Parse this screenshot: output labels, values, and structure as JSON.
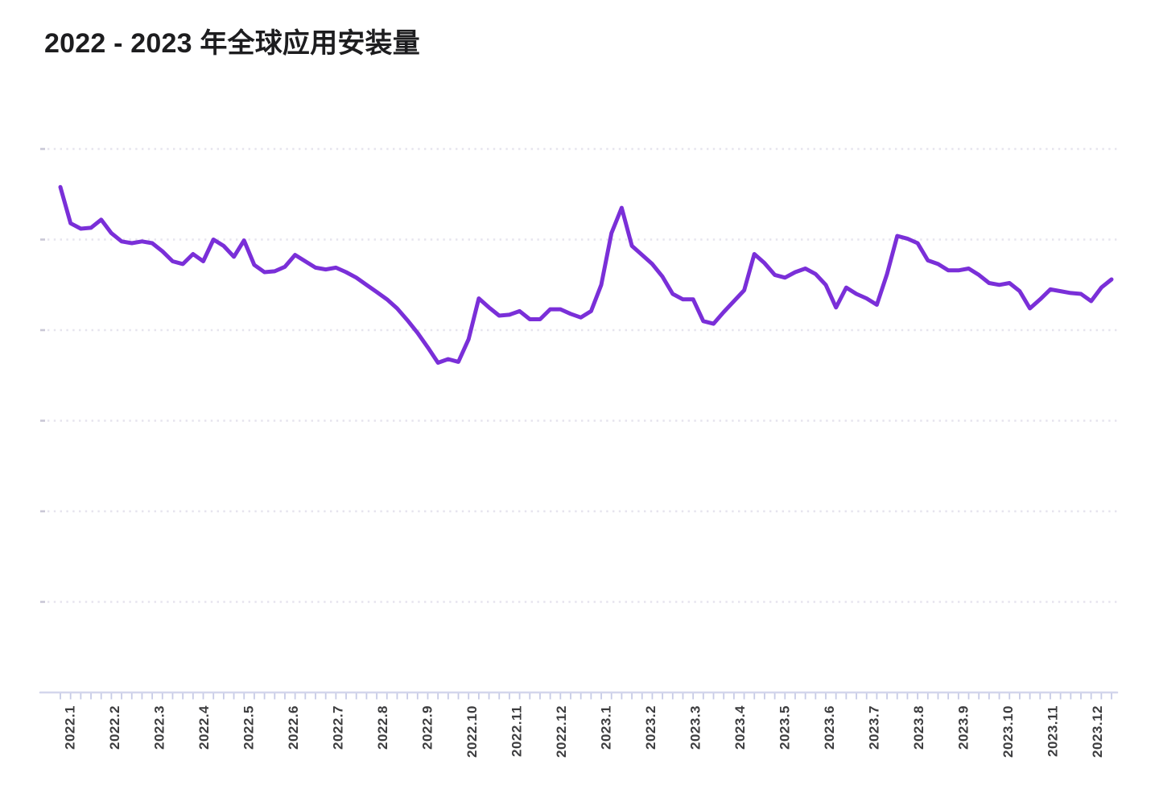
{
  "header": {
    "title": "2022 - 2023 年全球应用安装量"
  },
  "chart_data": {
    "type": "line",
    "title": "2022 - 2023 年全球应用安装量",
    "xlabel": "",
    "ylabel": "",
    "x_resolution": "weekly",
    "categories": [
      "2022.1",
      "2022.2",
      "2022.3",
      "2022.4",
      "2022.5",
      "2022.6",
      "2022.7",
      "2022.8",
      "2022.9",
      "2022.10",
      "2022.11",
      "2022.12",
      "2023.1",
      "2023.2",
      "2023.3",
      "2023.4",
      "2023.5",
      "2023.6",
      "2023.7",
      "2023.8",
      "2023.9",
      "2023.10",
      "2023.11",
      "2023.12"
    ],
    "series": [
      {
        "name": "全球应用安装量",
        "color": "#7A2FD8",
        "values": [
          55.8,
          51.8,
          51.2,
          51.3,
          52.2,
          50.7,
          49.8,
          49.6,
          49.8,
          49.6,
          48.7,
          47.6,
          47.3,
          48.4,
          47.6,
          50.0,
          49.3,
          48.1,
          49.9,
          47.2,
          46.4,
          46.5,
          47.0,
          48.3,
          47.6,
          46.9,
          46.7,
          46.9,
          46.4,
          45.8,
          45.0,
          44.2,
          43.4,
          42.4,
          41.1,
          39.7,
          38.1,
          36.4,
          36.8,
          36.5,
          39.0,
          43.5,
          42.5,
          41.6,
          41.7,
          42.1,
          41.2,
          41.2,
          42.3,
          42.3,
          41.8,
          41.4,
          42.1,
          45.0,
          50.7,
          53.5,
          49.3,
          48.3,
          47.3,
          45.9,
          44.0,
          43.4,
          43.4,
          41.0,
          40.7,
          42.0,
          43.2,
          44.4,
          48.4,
          47.4,
          46.1,
          45.8,
          46.4,
          46.8,
          46.2,
          45.0,
          42.5,
          44.7,
          44.0,
          43.5,
          42.8,
          46.2,
          50.4,
          50.1,
          49.6,
          47.7,
          47.3,
          46.6,
          46.6,
          46.8,
          46.1,
          45.2,
          45.0,
          45.2,
          44.3,
          42.4,
          43.4,
          44.5,
          44.3,
          44.1,
          44.0,
          43.2,
          44.7,
          45.6
        ]
      }
    ],
    "y_axis": {
      "labels_shown": false,
      "unit": "relative index (no y-axis labels rendered in chart)",
      "gridline_values": [
        60,
        50,
        40,
        30,
        20,
        10
      ],
      "axis_value": 0,
      "ylim": [
        0,
        62
      ]
    },
    "legend": "none",
    "grid": "dotted horizontal gridlines, hidden y labels"
  },
  "colors": {
    "line": "#7A2FD8",
    "grid_dots": "#e6e4ee",
    "grid_start_dash": "#c9c7d6",
    "axis_line": "#d3d6ec",
    "tick_mark": "#c7cbe6",
    "label_text": "#3c3c3e",
    "title_text": "#1d1d1f",
    "background": "#ffffff"
  }
}
